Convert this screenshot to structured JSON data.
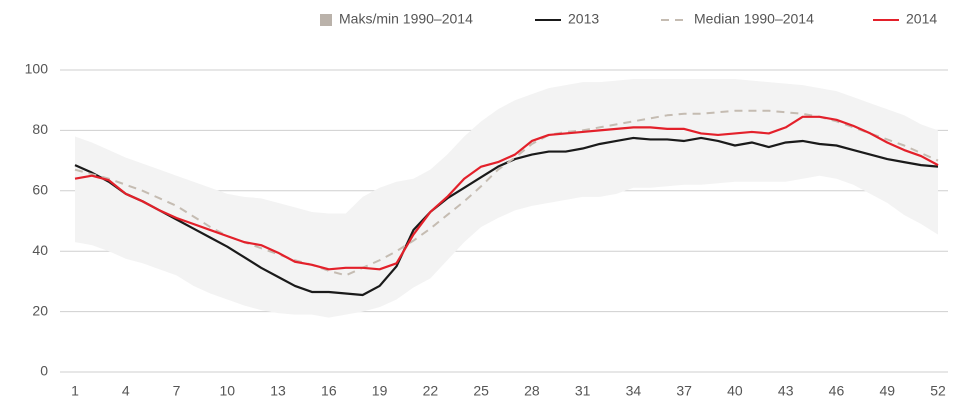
{
  "chart_data": {
    "type": "line",
    "x": [
      1,
      2,
      3,
      4,
      5,
      6,
      7,
      8,
      9,
      10,
      11,
      12,
      13,
      14,
      15,
      16,
      17,
      18,
      19,
      20,
      21,
      22,
      23,
      24,
      25,
      26,
      27,
      28,
      29,
      30,
      31,
      32,
      33,
      34,
      35,
      36,
      37,
      38,
      39,
      40,
      41,
      42,
      43,
      44,
      45,
      46,
      47,
      48,
      49,
      50,
      51,
      52
    ],
    "xlim": [
      1,
      52
    ],
    "xticks": [
      1,
      4,
      7,
      10,
      13,
      16,
      19,
      22,
      25,
      28,
      31,
      34,
      37,
      40,
      43,
      46,
      49,
      52
    ],
    "ylim": [
      0,
      100
    ],
    "yticks": [
      0,
      20,
      40,
      60,
      80,
      100
    ],
    "grid": true,
    "legend": "top-right",
    "series": [
      {
        "name": "Maks/min 1990–2014",
        "type": "band",
        "color": "#f3f3f3",
        "legend_color": "#bab2aa",
        "max": [
          78,
          76,
          73.5,
          71,
          69,
          67,
          65,
          63,
          61,
          59,
          58,
          57.5,
          56,
          54.5,
          53,
          52.5,
          52.5,
          58,
          61,
          63,
          64,
          67,
          72,
          78,
          83,
          87,
          90,
          92,
          94,
          95,
          96,
          96,
          96.5,
          97,
          97,
          97,
          97,
          97,
          97,
          97,
          96.5,
          96,
          95.5,
          95,
          94,
          93,
          91,
          89,
          87,
          85,
          82,
          80
        ],
        "min": [
          43,
          42,
          40,
          37.5,
          36,
          34,
          32,
          28.5,
          26,
          24,
          22,
          20.5,
          19.5,
          19,
          19,
          18,
          19,
          20,
          21.5,
          24,
          28,
          31,
          37,
          43,
          48,
          51,
          53.5,
          55,
          56,
          57,
          58,
          58,
          59,
          61,
          61,
          61.5,
          62,
          62,
          62.5,
          63,
          63,
          63,
          63,
          64,
          65,
          64,
          62,
          59,
          56,
          52,
          49,
          45.5
        ]
      },
      {
        "name": "2013",
        "color": "#1a1a1a",
        "values": [
          68.5,
          66,
          63,
          59,
          56.5,
          53.5,
          50.5,
          47.5,
          44.5,
          41.5,
          38,
          34.5,
          31.5,
          28.5,
          26.5,
          26.5,
          26,
          25.5,
          28.5,
          35,
          47,
          53,
          57.5,
          61,
          64.5,
          68,
          70.5,
          72,
          73,
          73,
          74,
          75.5,
          76.5,
          77.5,
          77,
          77,
          76.5,
          77.5,
          76.5,
          75,
          76,
          74.5,
          76,
          76.5,
          75.5,
          75,
          73.5,
          72,
          70.5,
          69.5,
          68.5,
          68
        ]
      },
      {
        "name": "Median 1990–2014",
        "color": "#c5bcb2",
        "dash": true,
        "values": [
          67,
          65.5,
          64,
          62,
          60,
          57.5,
          55,
          51.5,
          48,
          45,
          43,
          41,
          39,
          37,
          35.5,
          33.5,
          32,
          34.5,
          37,
          40,
          43.5,
          47.5,
          52,
          56.5,
          61.5,
          67,
          71,
          75.5,
          78.5,
          79.5,
          80,
          81,
          82,
          83,
          84,
          85,
          85.5,
          85.5,
          86,
          86.5,
          86.5,
          86.5,
          86,
          85.5,
          84.5,
          83,
          81,
          79,
          77,
          75,
          72.5,
          70
        ]
      },
      {
        "name": "2014",
        "color": "#e3202a",
        "values": [
          64,
          65,
          63.5,
          59,
          56.5,
          53.5,
          51,
          49,
          47,
          45,
          43,
          42,
          39.5,
          36.5,
          35.5,
          34,
          34.5,
          34.5,
          34,
          36,
          45.5,
          53,
          58,
          64,
          68,
          69.5,
          72,
          76.5,
          78.5,
          79,
          79.5,
          80,
          80.5,
          81,
          81,
          80.5,
          80.5,
          79,
          78.5,
          79,
          79.5,
          79,
          81,
          84.5,
          84.5,
          83.5,
          81.5,
          79,
          76,
          73.5,
          71.5,
          68.5
        ]
      }
    ]
  }
}
